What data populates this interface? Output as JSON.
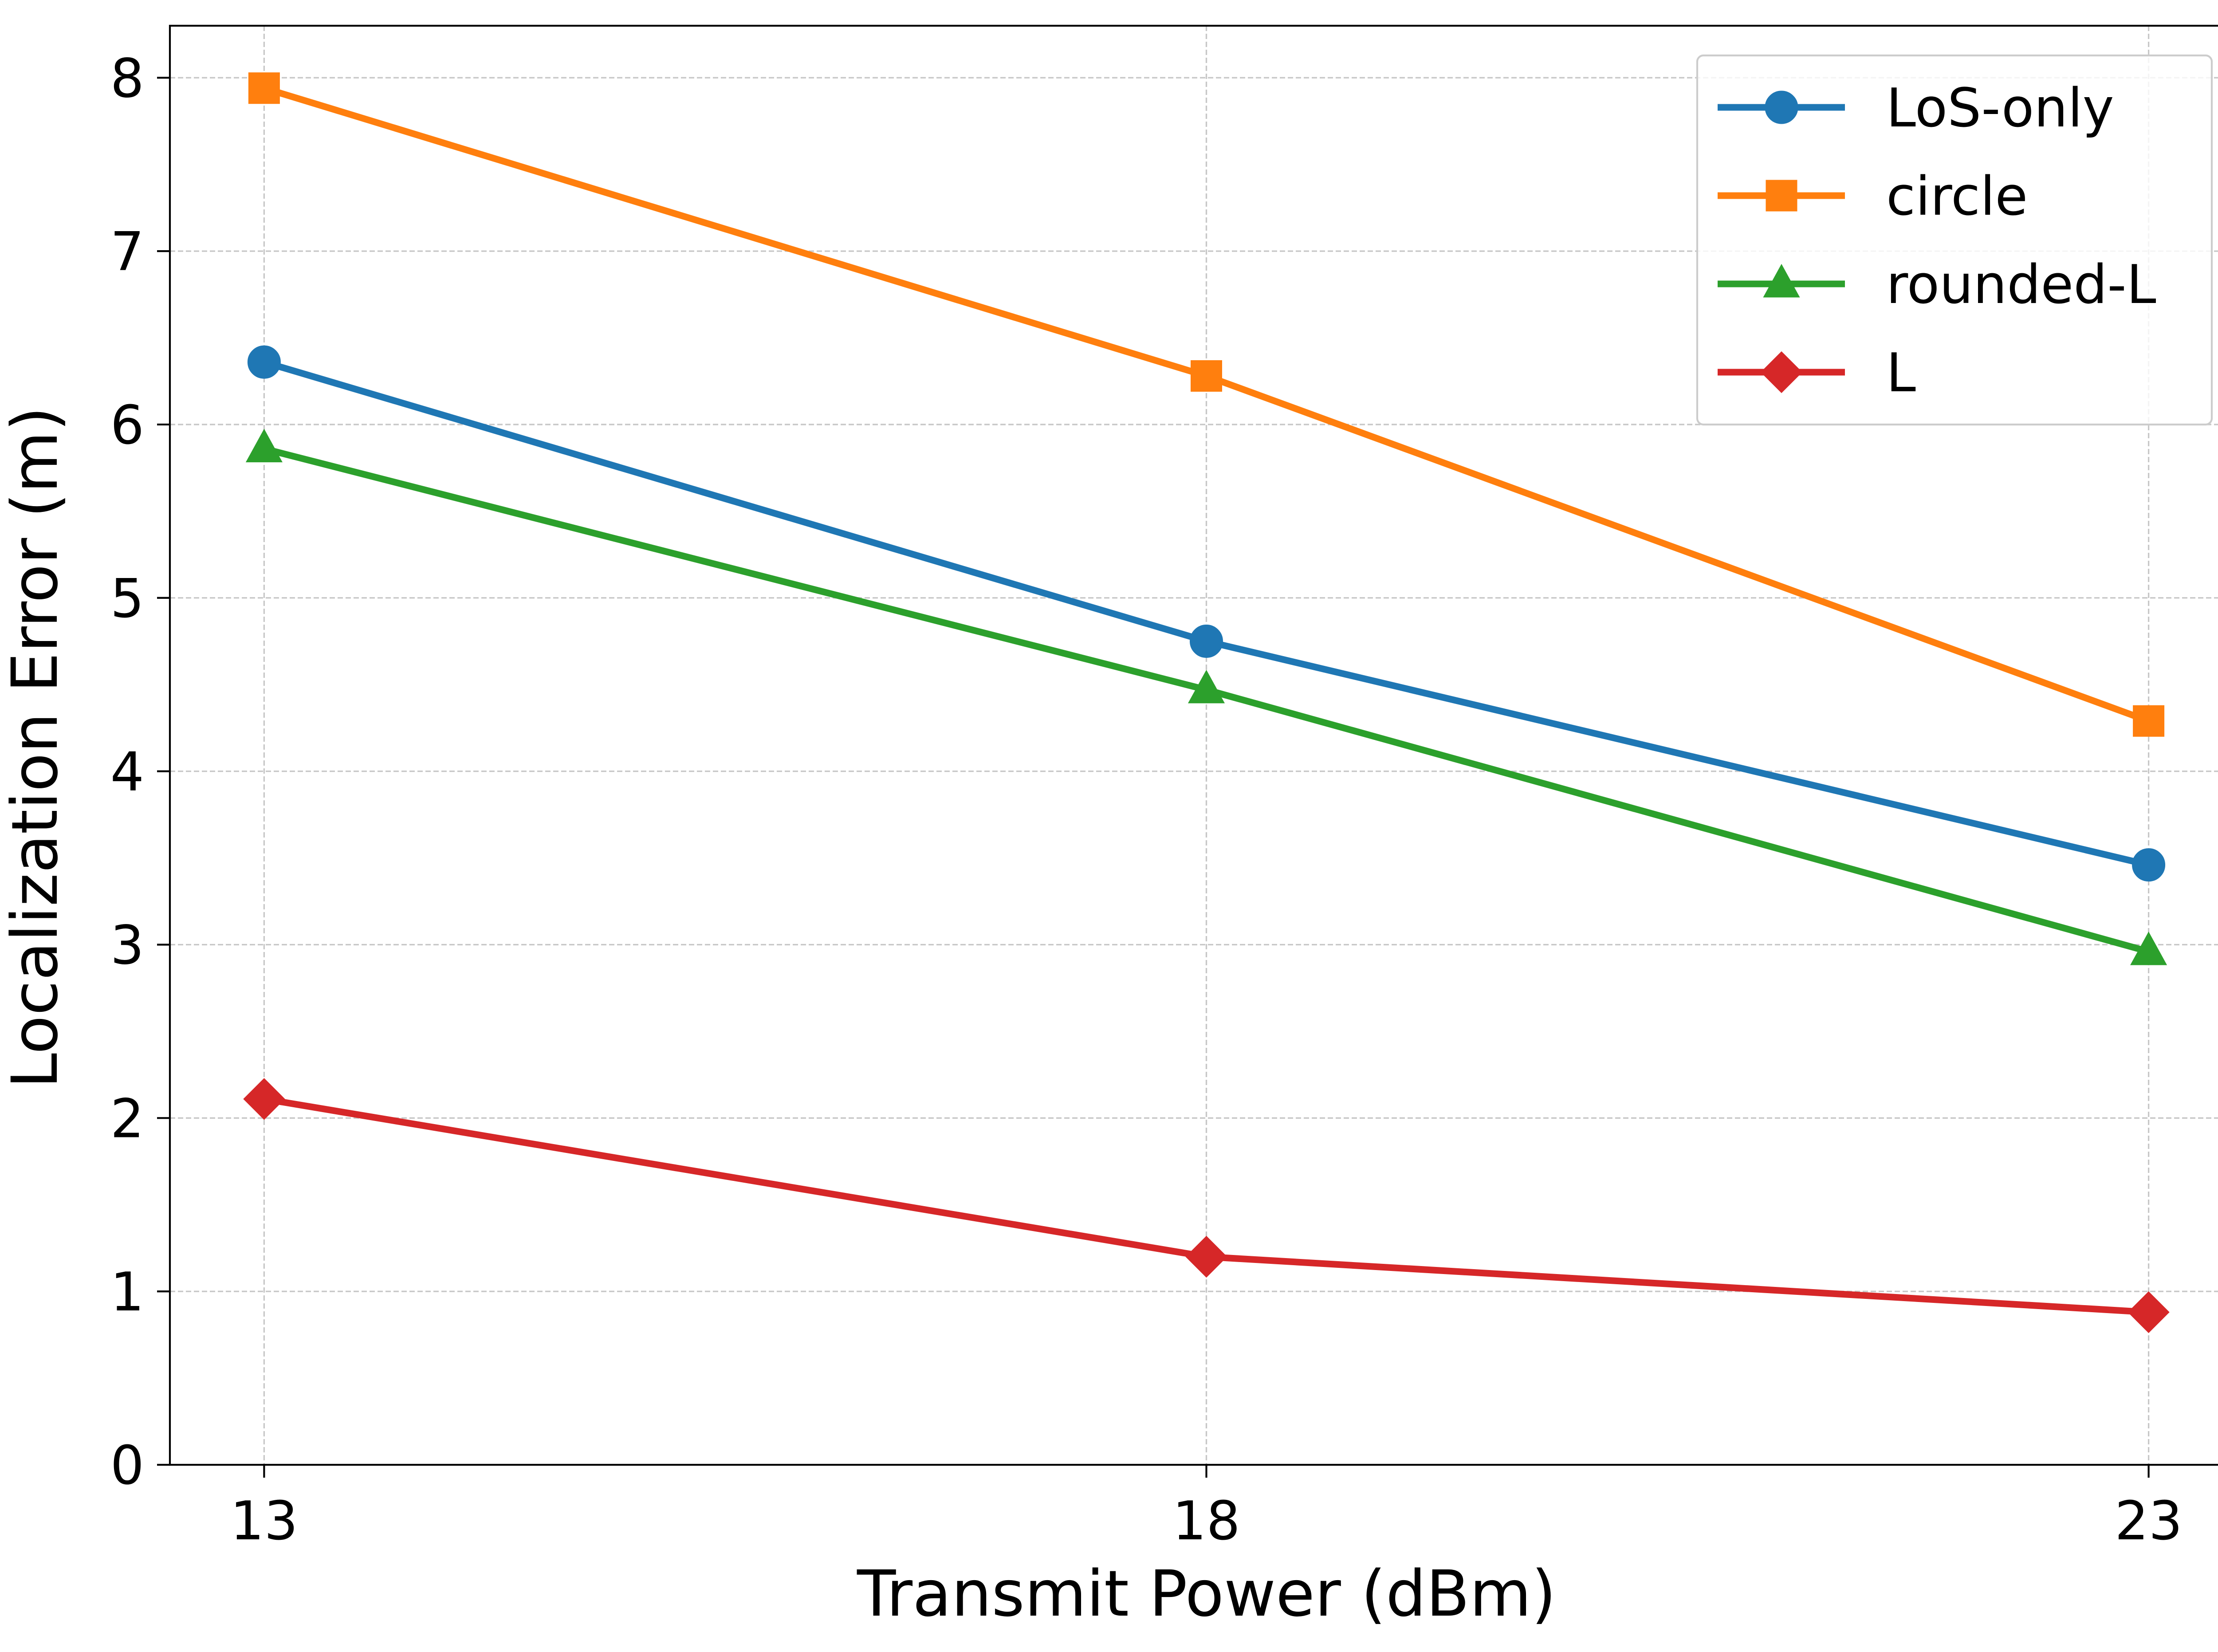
{
  "chart_data": {
    "type": "line",
    "title": "",
    "xlabel": "Transmit Power (dBm)",
    "ylabel": "Localization Error (m)",
    "x": [
      13,
      18,
      23
    ],
    "x_tick_labels": [
      "13",
      "18",
      "23"
    ],
    "xlim": [
      12.5,
      23.5
    ],
    "ylim": [
      0,
      8.3
    ],
    "y_ticks": [
      0,
      1,
      2,
      3,
      4,
      5,
      6,
      7,
      8
    ],
    "y_tick_labels": [
      "0",
      "1",
      "2",
      "3",
      "4",
      "5",
      "6",
      "7",
      "8"
    ],
    "grid": true,
    "legend_position": "top-right",
    "series": [
      {
        "name": "LoS-only",
        "values": [
          6.36,
          4.75,
          3.46
        ],
        "color": "#1f77b4",
        "marker": "circle"
      },
      {
        "name": "circle",
        "values": [
          7.94,
          6.28,
          4.29
        ],
        "color": "#ff7f0e",
        "marker": "square"
      },
      {
        "name": "rounded-L",
        "values": [
          5.86,
          4.47,
          2.96
        ],
        "color": "#2ca02c",
        "marker": "triangle"
      },
      {
        "name": "L",
        "values": [
          2.11,
          1.2,
          0.88
        ],
        "color": "#d62728",
        "marker": "diamond"
      }
    ]
  }
}
